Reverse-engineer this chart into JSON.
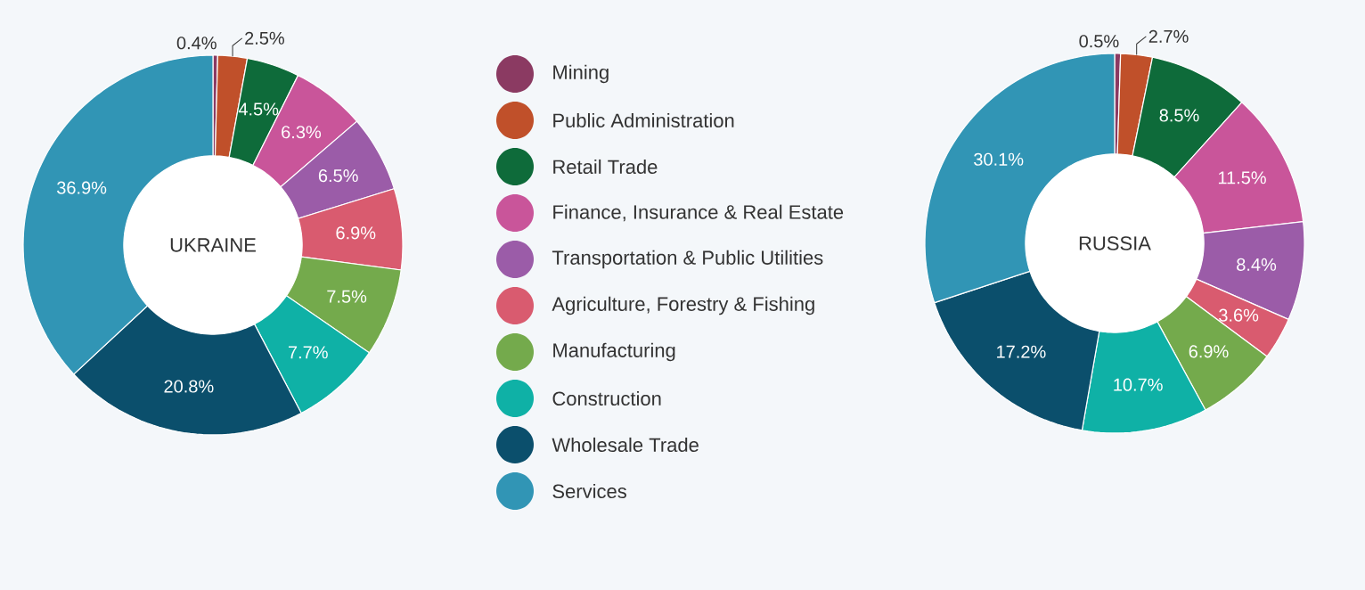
{
  "chart_data": [
    {
      "type": "donut",
      "title": "UKRAINE",
      "legend": "right",
      "categories": [
        "Mining",
        "Public Administration",
        "Retail Trade",
        "Finance, Insurance & Real Estate",
        "Transportation & Public Utilities",
        "Agriculture, Forestry & Fishing",
        "Manufacturing",
        "Construction",
        "Wholesale Trade",
        "Services"
      ],
      "values": [
        0.4,
        2.5,
        4.5,
        6.3,
        6.5,
        6.9,
        7.5,
        7.7,
        20.8,
        36.9
      ],
      "value_labels": [
        "0.4%",
        "2.5%",
        "4.5%",
        "6.3%",
        "6.5%",
        "6.9%",
        "7.5%",
        "7.7%",
        "20.8%",
        "36.9%"
      ],
      "colors": [
        "#8b3a62",
        "#c0502a",
        "#0e6b3a",
        "#c9559a",
        "#9b5ca8",
        "#d95b6f",
        "#74aa4c",
        "#0fb1a6",
        "#0b4f6c",
        "#3195b5"
      ]
    },
    {
      "type": "donut",
      "title": "RUSSIA",
      "values": [
        0.5,
        2.7,
        8.5,
        11.5,
        8.4,
        3.6,
        6.9,
        10.7,
        17.2,
        30.1
      ],
      "value_labels": [
        "0.5%",
        "2.7%",
        "8.5%",
        "11.5%",
        "8.4%",
        "3.6%",
        "6.9%",
        "10.7%",
        "17.2%",
        "30.1%"
      ],
      "colors": [
        "#8b3a62",
        "#c0502a",
        "#0e6b3a",
        "#c9559a",
        "#9b5ca8",
        "#d95b6f",
        "#74aa4c",
        "#0fb1a6",
        "#0b4f6c",
        "#3195b5"
      ]
    }
  ]
}
